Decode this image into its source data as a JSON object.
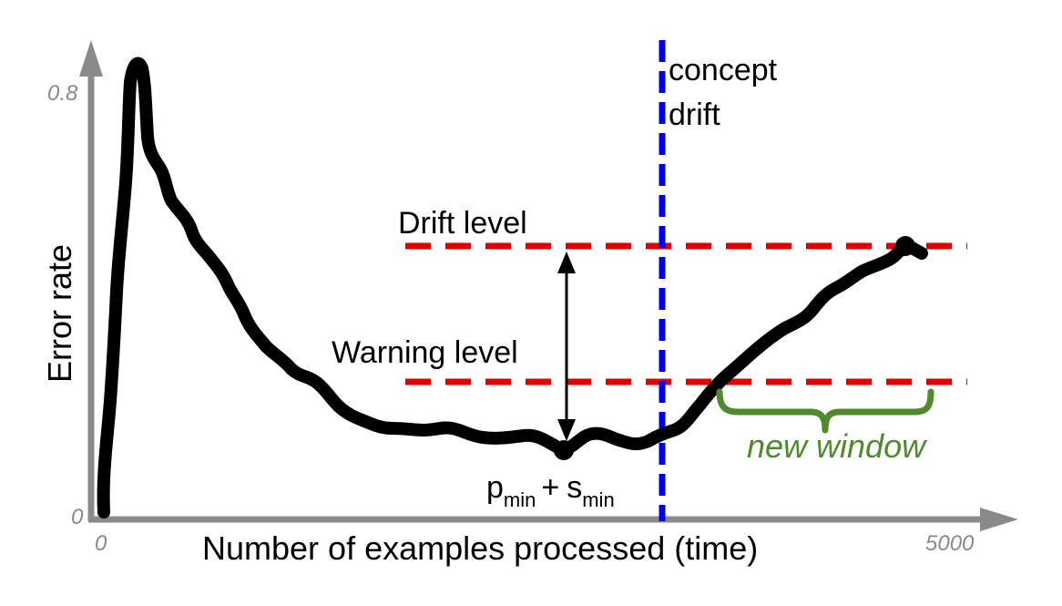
{
  "axes": {
    "xlabel": "Number of examples processed (time)",
    "ylabel": "Error rate",
    "x_tick_start": "0",
    "x_tick_end": "5000",
    "y_tick_bottom": "0",
    "y_tick_top": "0.8",
    "axis_color": "#8a8a8a"
  },
  "levels": {
    "drift_label": "Drift level",
    "warning_label": "Warning level",
    "color": "#e00000"
  },
  "concept_drift": {
    "line1": "concept",
    "line2": "drift",
    "color": "#0000ee"
  },
  "pmin": {
    "p": "p",
    "p_sub": "min",
    "plus": "+",
    "s": "s",
    "s_sub": "min"
  },
  "new_window": {
    "label": "new window",
    "color": "#4f8a2f"
  },
  "curve": {
    "color": "#000000",
    "description_points": "error rate curve over time"
  }
}
